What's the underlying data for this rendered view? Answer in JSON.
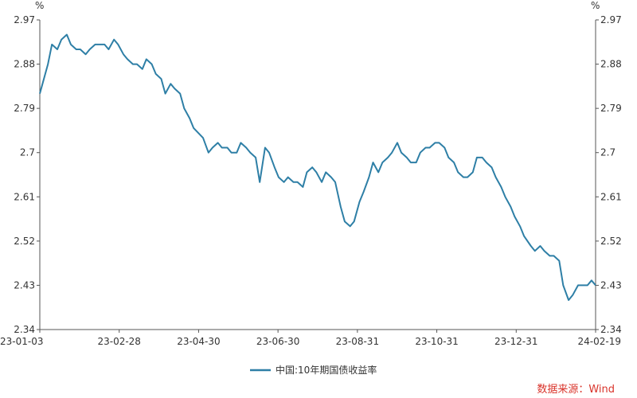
{
  "chart_data": {
    "type": "line",
    "y_unit_left": "%",
    "y_unit_right": "%",
    "x_tick_labels": [
      "23-01-03",
      "23-02-28",
      "23-04-30",
      "23-06-30",
      "23-08-31",
      "23-10-31",
      "23-12-31",
      "24-02-19"
    ],
    "y_ticks": [
      2.34,
      2.43,
      2.52,
      2.61,
      2.7,
      2.79,
      2.88,
      2.97
    ],
    "y_tick_labels": [
      "2.34",
      "2.43",
      "2.52",
      "2.61",
      "2.7",
      "2.79",
      "2.88",
      "2.97"
    ],
    "ylim": [
      2.34,
      2.97
    ],
    "x_range": [
      "2023-01-03",
      "2024-02-19"
    ],
    "grid": false,
    "legend_position": "bottom",
    "series": [
      {
        "name": "中国:10年期国债收益率",
        "color": "#2e7fa6",
        "x": [
          "2023-01-03",
          "2023-01-05",
          "2023-01-09",
          "2023-01-12",
          "2023-01-16",
          "2023-01-19",
          "2023-01-23",
          "2023-01-26",
          "2023-01-30",
          "2023-02-02",
          "2023-02-06",
          "2023-02-09",
          "2023-02-13",
          "2023-02-16",
          "2023-02-20",
          "2023-02-23",
          "2023-02-27",
          "2023-03-02",
          "2023-03-06",
          "2023-03-09",
          "2023-03-13",
          "2023-03-16",
          "2023-03-20",
          "2023-03-23",
          "2023-03-27",
          "2023-03-30",
          "2023-04-03",
          "2023-04-06",
          "2023-04-10",
          "2023-04-13",
          "2023-04-17",
          "2023-04-20",
          "2023-04-24",
          "2023-04-27",
          "2023-05-04",
          "2023-05-08",
          "2023-05-11",
          "2023-05-15",
          "2023-05-18",
          "2023-05-22",
          "2023-05-25",
          "2023-05-29",
          "2023-06-01",
          "2023-06-05",
          "2023-06-08",
          "2023-06-12",
          "2023-06-15",
          "2023-06-19",
          "2023-06-22",
          "2023-06-26",
          "2023-06-29",
          "2023-07-03",
          "2023-07-06",
          "2023-07-10",
          "2023-07-13",
          "2023-07-17",
          "2023-07-20",
          "2023-07-24",
          "2023-07-27",
          "2023-07-31",
          "2023-08-03",
          "2023-08-07",
          "2023-08-10",
          "2023-08-14",
          "2023-08-17",
          "2023-08-21",
          "2023-08-24",
          "2023-08-28",
          "2023-08-31",
          "2023-09-04",
          "2023-09-07",
          "2023-09-11",
          "2023-09-14",
          "2023-09-18",
          "2023-09-21",
          "2023-09-25",
          "2023-09-28",
          "2023-10-02",
          "2023-10-05",
          "2023-10-09",
          "2023-10-12",
          "2023-10-16",
          "2023-10-19",
          "2023-10-23",
          "2023-10-26",
          "2023-10-30",
          "2023-11-02",
          "2023-11-06",
          "2023-11-09",
          "2023-11-13",
          "2023-11-16",
          "2023-11-20",
          "2023-11-23",
          "2023-11-27",
          "2023-11-30",
          "2023-12-04",
          "2023-12-07",
          "2023-12-11",
          "2023-12-14",
          "2023-12-18",
          "2023-12-21",
          "2023-12-25",
          "2023-12-28",
          "2024-01-02",
          "2024-01-05",
          "2024-01-09",
          "2024-01-12",
          "2024-01-16",
          "2024-01-19",
          "2024-01-23",
          "2024-01-26",
          "2024-01-30",
          "2024-02-02",
          "2024-02-06",
          "2024-02-09",
          "2024-02-13",
          "2024-02-16",
          "2024-02-19"
        ],
        "values": [
          2.82,
          2.84,
          2.88,
          2.92,
          2.91,
          2.93,
          2.94,
          2.92,
          2.91,
          2.91,
          2.9,
          2.91,
          2.92,
          2.92,
          2.92,
          2.91,
          2.93,
          2.92,
          2.9,
          2.89,
          2.88,
          2.88,
          2.87,
          2.89,
          2.88,
          2.86,
          2.85,
          2.82,
          2.84,
          2.83,
          2.82,
          2.79,
          2.77,
          2.75,
          2.73,
          2.7,
          2.71,
          2.72,
          2.71,
          2.71,
          2.7,
          2.7,
          2.72,
          2.71,
          2.7,
          2.69,
          2.64,
          2.71,
          2.7,
          2.67,
          2.65,
          2.64,
          2.65,
          2.64,
          2.64,
          2.63,
          2.66,
          2.67,
          2.66,
          2.64,
          2.66,
          2.65,
          2.64,
          2.59,
          2.56,
          2.55,
          2.56,
          2.6,
          2.62,
          2.65,
          2.68,
          2.66,
          2.68,
          2.69,
          2.7,
          2.72,
          2.7,
          2.69,
          2.68,
          2.68,
          2.7,
          2.71,
          2.71,
          2.72,
          2.72,
          2.71,
          2.69,
          2.68,
          2.66,
          2.65,
          2.65,
          2.66,
          2.69,
          2.69,
          2.68,
          2.67,
          2.65,
          2.63,
          2.61,
          2.59,
          2.57,
          2.55,
          2.53,
          2.51,
          2.5,
          2.51,
          2.5,
          2.49,
          2.49,
          2.48,
          2.43,
          2.4,
          2.41,
          2.43,
          2.43,
          2.43,
          2.44,
          2.43
        ]
      }
    ]
  },
  "source_label": "数据来源：Wind",
  "source_color": "#d9342b"
}
